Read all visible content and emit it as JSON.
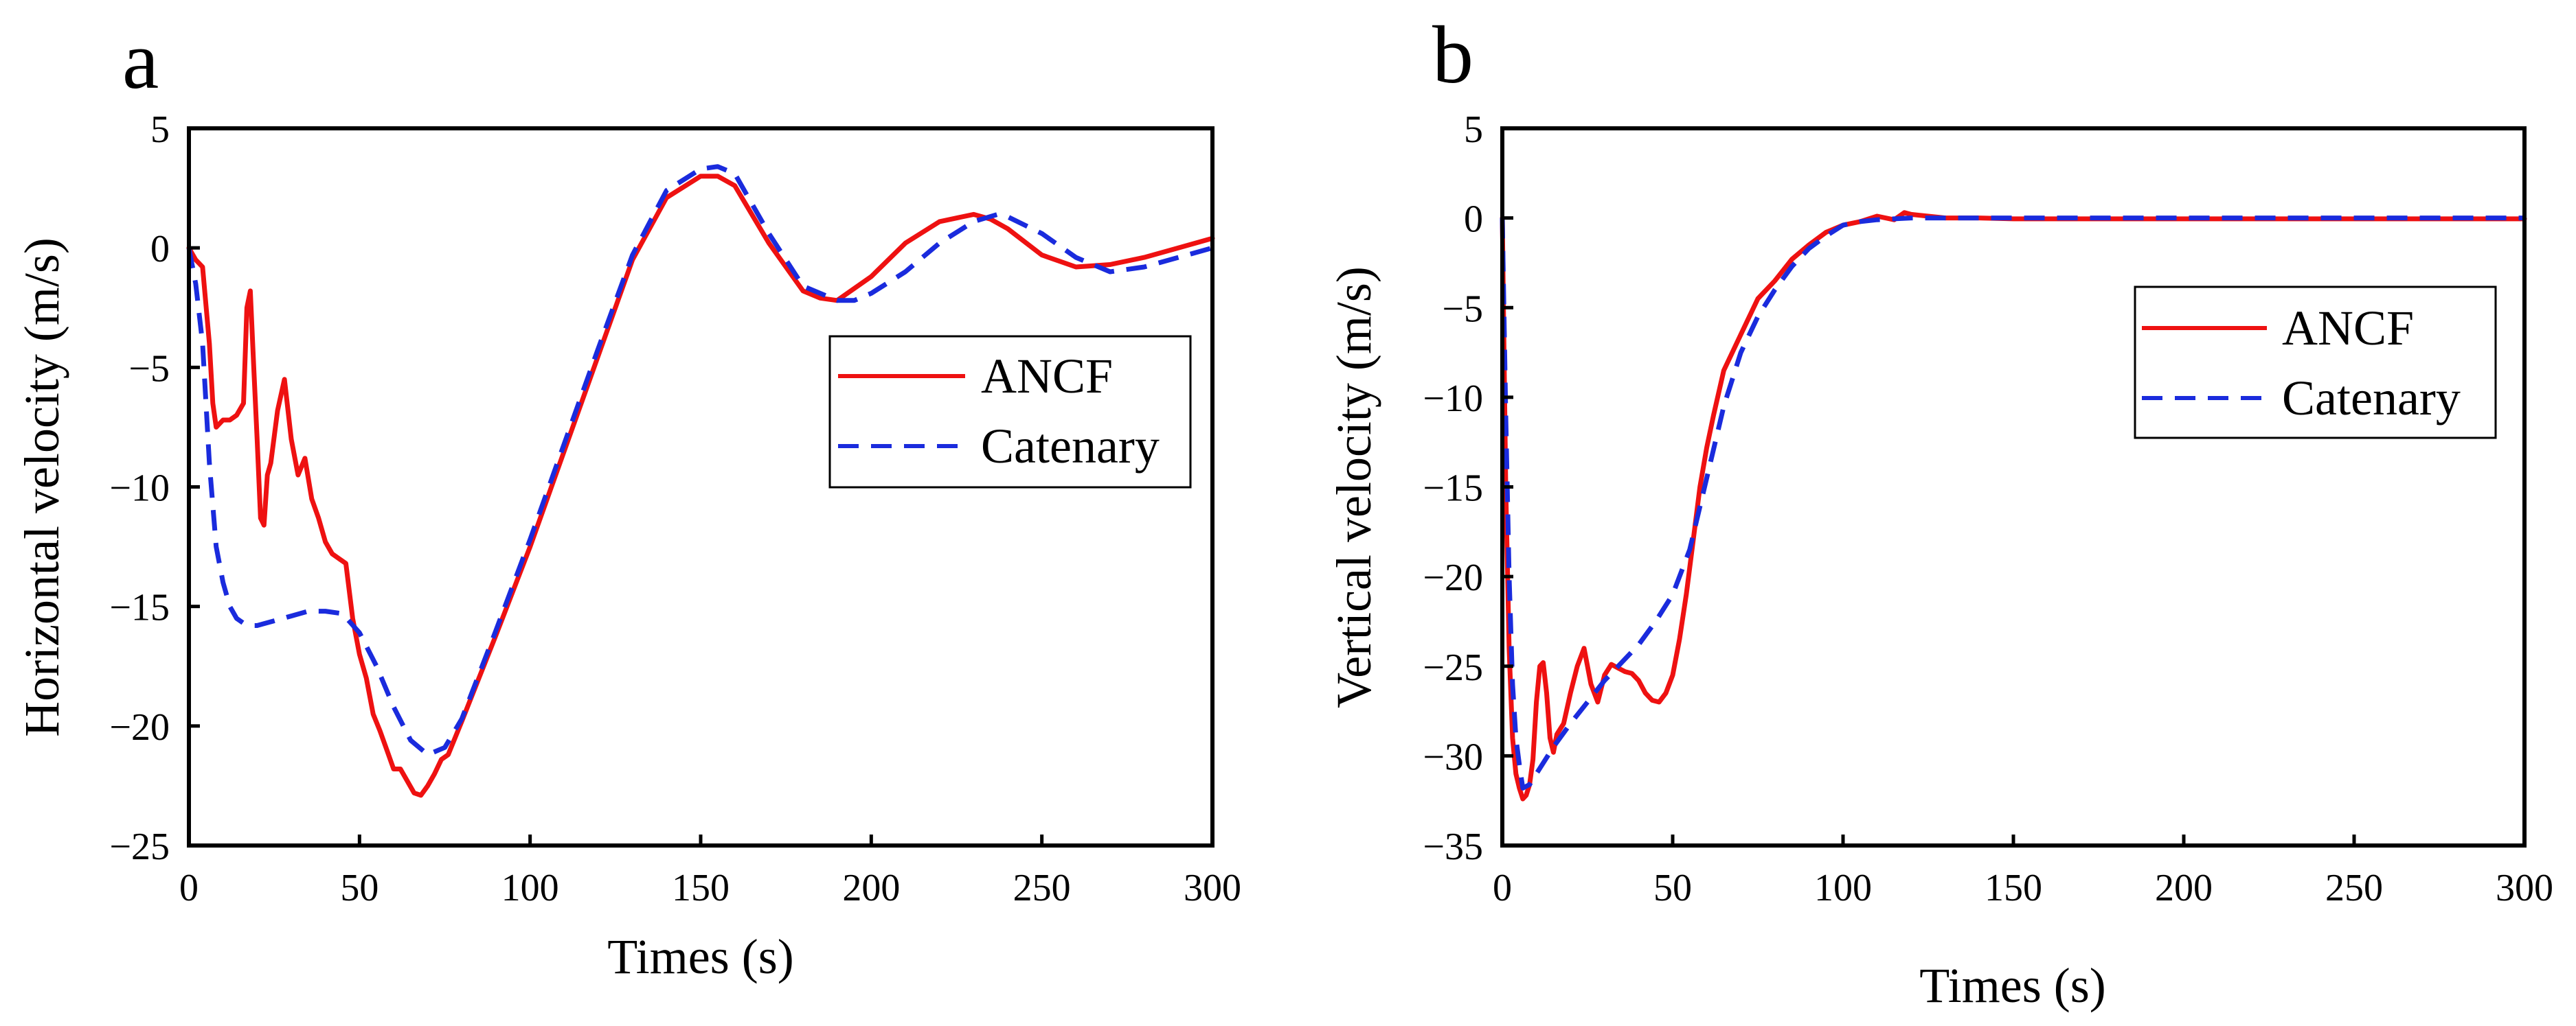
{
  "chart_data": [
    {
      "panel": "a",
      "type": "line",
      "xlabel": "Times (s)",
      "ylabel": "Horizontal velocity (m/s)",
      "xlim": [
        0,
        300
      ],
      "ylim": [
        -25,
        5
      ],
      "xticks": [
        0,
        50,
        100,
        150,
        200,
        250,
        300
      ],
      "yticks": [
        -25,
        -20,
        -15,
        -10,
        -5,
        0,
        5
      ],
      "grid": false,
      "legend_position": "right",
      "series": [
        {
          "name": "ANCF",
          "color": "#ee1111",
          "style": "solid",
          "x": [
            0,
            2,
            4,
            6,
            7,
            8,
            10,
            12,
            14,
            16,
            17,
            18,
            19,
            20,
            21,
            22,
            23,
            24,
            26,
            28,
            30,
            32,
            34,
            36,
            38,
            40,
            42,
            44,
            46,
            48,
            50,
            52,
            54,
            56,
            58,
            60,
            62,
            64,
            66,
            68,
            70,
            72,
            74,
            76,
            80,
            90,
            100,
            110,
            120,
            130,
            140,
            150,
            155,
            160,
            170,
            180,
            185,
            190,
            200,
            210,
            220,
            230,
            235,
            240,
            250,
            260,
            270,
            280,
            290,
            300
          ],
          "y": [
            0,
            -0.5,
            -0.8,
            -4,
            -6.5,
            -7.5,
            -7.2,
            -7.2,
            -7.0,
            -6.5,
            -2.5,
            -1.8,
            -5,
            -8,
            -11.3,
            -11.6,
            -9.5,
            -9,
            -6.8,
            -5.5,
            -8,
            -9.5,
            -8.8,
            -10.5,
            -11.3,
            -12.3,
            -12.8,
            -13,
            -13.2,
            -15.5,
            -17,
            -18,
            -19.5,
            -20.2,
            -21,
            -21.8,
            -21.8,
            -22.3,
            -22.8,
            -22.9,
            -22.5,
            -22.0,
            -21.4,
            -21.2,
            -19.8,
            -16.2,
            -12.5,
            -8.5,
            -4.5,
            -0.5,
            2.1,
            3.0,
            3.0,
            2.6,
            0.2,
            -1.8,
            -2.1,
            -2.2,
            -1.2,
            0.2,
            1.1,
            1.4,
            1.2,
            0.8,
            -0.3,
            -0.8,
            -0.7,
            -0.4,
            0.0,
            0.4
          ]
        },
        {
          "name": "Catenary",
          "color": "#1a2bdd",
          "style": "dashed",
          "x": [
            0,
            2,
            4,
            6,
            8,
            10,
            12,
            14,
            16,
            18,
            20,
            25,
            30,
            35,
            40,
            45,
            50,
            55,
            60,
            65,
            70,
            75,
            80,
            90,
            100,
            110,
            120,
            130,
            140,
            150,
            155,
            160,
            170,
            180,
            190,
            195,
            200,
            210,
            220,
            230,
            237,
            240,
            250,
            260,
            270,
            280,
            290,
            300
          ],
          "y": [
            0,
            -1.5,
            -4,
            -9,
            -12.5,
            -14,
            -15,
            -15.5,
            -15.7,
            -15.8,
            -15.8,
            -15.6,
            -15.4,
            -15.2,
            -15.2,
            -15.3,
            -16.1,
            -17.5,
            -19.2,
            -20.6,
            -21.2,
            -20.9,
            -19.7,
            -16.0,
            -12.2,
            -8.2,
            -4.2,
            -0.3,
            2.4,
            3.3,
            3.4,
            3.1,
            0.6,
            -1.6,
            -2.2,
            -2.2,
            -1.9,
            -1.0,
            0.2,
            1.1,
            1.4,
            1.3,
            0.6,
            -0.4,
            -1.0,
            -0.8,
            -0.4,
            0.0
          ]
        }
      ]
    },
    {
      "panel": "b",
      "type": "line",
      "xlabel": "Times (s)",
      "ylabel": "Vertical velocity (m/s)",
      "xlim": [
        0,
        300
      ],
      "ylim": [
        -35,
        5
      ],
      "xticks": [
        0,
        50,
        100,
        150,
        200,
        250,
        300
      ],
      "yticks": [
        -35,
        -30,
        -25,
        -20,
        -15,
        -10,
        -5,
        0,
        5
      ],
      "grid": false,
      "legend_position": "right",
      "series": [
        {
          "name": "ANCF",
          "color": "#ee1111",
          "style": "solid",
          "x": [
            0,
            1,
            2,
            3,
            4,
            5,
            6,
            7,
            8,
            9,
            10,
            11,
            12,
            13,
            14,
            15,
            16,
            18,
            20,
            22,
            24,
            26,
            28,
            30,
            32,
            34,
            36,
            38,
            40,
            42,
            44,
            46,
            48,
            50,
            52,
            54,
            56,
            58,
            60,
            62,
            65,
            70,
            75,
            80,
            85,
            90,
            95,
            100,
            105,
            110,
            115,
            118,
            120,
            125,
            130,
            140,
            150,
            200,
            250,
            300
          ],
          "y": [
            0,
            -15,
            -24,
            -29,
            -31,
            -31.8,
            -32.4,
            -32.2,
            -31.6,
            -30.2,
            -27,
            -25,
            -24.8,
            -26.5,
            -29,
            -29.8,
            -28.8,
            -28.2,
            -26.5,
            -25,
            -24,
            -26,
            -27,
            -25.5,
            -24.9,
            -25.1,
            -25.3,
            -25.4,
            -25.8,
            -26.5,
            -26.9,
            -27,
            -26.5,
            -25.5,
            -23.5,
            -21,
            -18,
            -15,
            -12.8,
            -11,
            -8.5,
            -6.5,
            -4.5,
            -3.5,
            -2.3,
            -1.5,
            -0.8,
            -0.4,
            -0.2,
            0.1,
            -0.1,
            0.3,
            0.2,
            0.1,
            0.0,
            0.0,
            -0.05,
            -0.05,
            -0.05,
            -0.05
          ]
        },
        {
          "name": "Catenary",
          "color": "#1a2bdd",
          "style": "dashed",
          "x": [
            0,
            1,
            2,
            3,
            4,
            5,
            6,
            8,
            10,
            15,
            20,
            25,
            30,
            35,
            40,
            45,
            50,
            55,
            60,
            65,
            70,
            75,
            80,
            85,
            90,
            95,
            100,
            105,
            110,
            120,
            150,
            200,
            250,
            300
          ],
          "y": [
            0,
            -11,
            -20,
            -26,
            -29,
            -30.5,
            -31.8,
            -31.6,
            -31.0,
            -29.5,
            -28.2,
            -27,
            -25.8,
            -24.8,
            -23.8,
            -22.5,
            -21,
            -18.5,
            -14.5,
            -10.5,
            -7.5,
            -5.5,
            -4,
            -2.7,
            -1.7,
            -1.0,
            -0.4,
            -0.2,
            -0.1,
            0.0,
            0.0,
            0.0,
            0.0,
            0.0
          ]
        }
      ]
    }
  ]
}
